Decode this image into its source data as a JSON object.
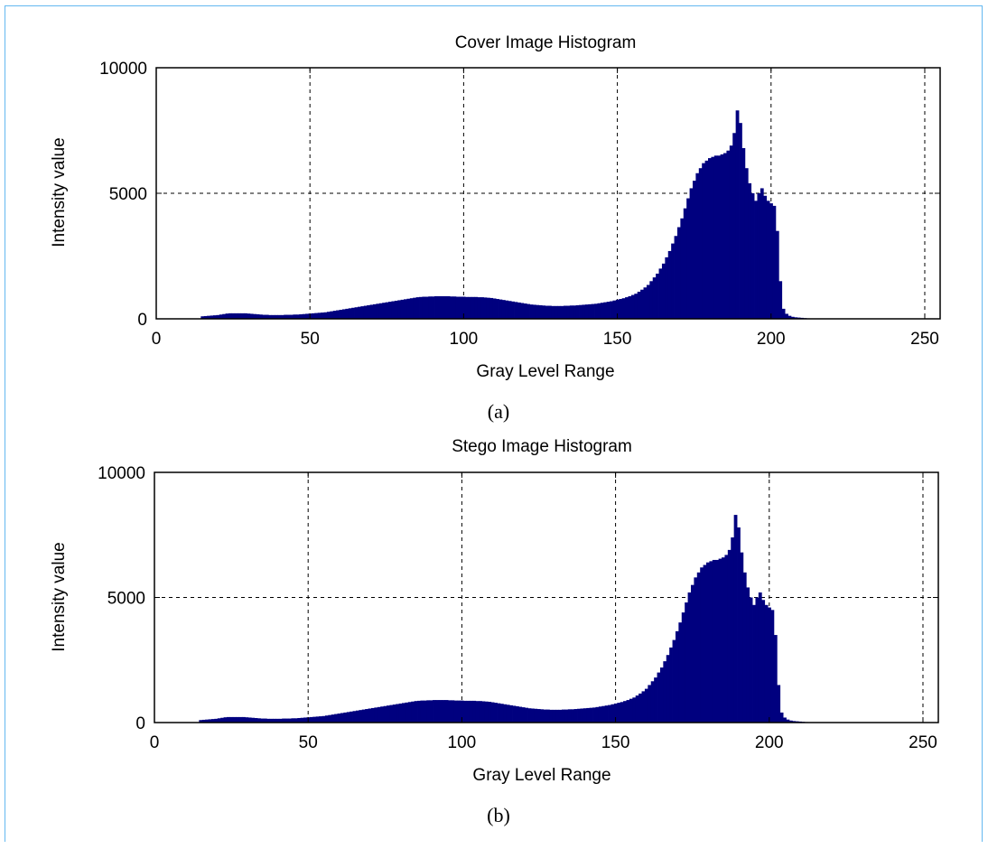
{
  "chart_data": [
    {
      "type": "bar",
      "title": "Cover Image Histogram",
      "xlabel": "Gray Level Range",
      "ylabel": "Intensity value",
      "caption": "(a)",
      "xlim": [
        0,
        255
      ],
      "ylim": [
        0,
        10000
      ],
      "xticks": [
        0,
        50,
        100,
        150,
        200,
        250
      ],
      "yticks": [
        0,
        5000,
        10000
      ],
      "grid": true,
      "bar_color": "#00007f",
      "x_start": 15,
      "values": [
        100,
        110,
        120,
        130,
        140,
        150,
        170,
        190,
        210,
        220,
        220,
        220,
        220,
        220,
        220,
        210,
        200,
        190,
        180,
        170,
        160,
        160,
        150,
        150,
        150,
        150,
        150,
        160,
        160,
        160,
        170,
        170,
        180,
        190,
        200,
        210,
        220,
        230,
        240,
        250,
        260,
        280,
        300,
        320,
        340,
        360,
        380,
        400,
        420,
        440,
        460,
        480,
        500,
        520,
        540,
        560,
        580,
        600,
        620,
        640,
        660,
        680,
        700,
        720,
        740,
        760,
        780,
        800,
        820,
        840,
        860,
        870,
        880,
        880,
        890,
        890,
        900,
        900,
        900,
        900,
        900,
        890,
        890,
        880,
        880,
        880,
        870,
        870,
        870,
        870,
        860,
        860,
        850,
        840,
        830,
        810,
        790,
        770,
        750,
        730,
        710,
        690,
        670,
        650,
        630,
        610,
        590,
        570,
        560,
        550,
        540,
        530,
        520,
        520,
        510,
        510,
        510,
        510,
        520,
        520,
        530,
        530,
        540,
        550,
        560,
        570,
        580,
        590,
        600,
        620,
        640,
        660,
        680,
        700,
        730,
        760,
        790,
        820,
        860,
        900,
        950,
        1000,
        1080,
        1160,
        1250,
        1350,
        1500,
        1650,
        1800,
        2000,
        2200,
        2450,
        2700,
        3000,
        3300,
        3650,
        4000,
        4400,
        4800,
        5200,
        5500,
        5800,
        6000,
        6200,
        6300,
        6400,
        6450,
        6500,
        6500,
        6550,
        6600,
        6700,
        6900,
        7400,
        8300,
        7800,
        6800,
        6000,
        5400,
        5000,
        4700,
        5000,
        5200,
        4900,
        4700,
        4600,
        4500,
        3500,
        1500,
        400,
        200,
        120,
        80,
        60,
        50,
        40,
        30,
        20,
        15
      ],
      "x_end": 232
    },
    {
      "type": "bar",
      "title": "Stego Image Histogram",
      "xlabel": "Gray Level Range",
      "ylabel": "Intensity value",
      "caption": "(b)",
      "xlim": [
        0,
        255
      ],
      "ylim": [
        0,
        10000
      ],
      "xticks": [
        0,
        50,
        100,
        150,
        200,
        250
      ],
      "yticks": [
        0,
        5000,
        10000
      ],
      "grid": true,
      "bar_color": "#00007f",
      "x_start": 15,
      "values": [
        100,
        110,
        120,
        130,
        140,
        150,
        170,
        190,
        210,
        220,
        220,
        220,
        220,
        220,
        220,
        210,
        200,
        190,
        180,
        170,
        160,
        160,
        150,
        150,
        150,
        150,
        150,
        160,
        160,
        160,
        170,
        170,
        180,
        190,
        200,
        210,
        220,
        230,
        240,
        250,
        260,
        280,
        300,
        320,
        340,
        360,
        380,
        400,
        420,
        440,
        460,
        480,
        500,
        520,
        540,
        560,
        580,
        600,
        620,
        640,
        660,
        680,
        700,
        720,
        740,
        760,
        780,
        800,
        820,
        840,
        860,
        870,
        880,
        880,
        890,
        890,
        900,
        900,
        900,
        900,
        900,
        890,
        890,
        880,
        880,
        880,
        870,
        870,
        870,
        870,
        860,
        860,
        850,
        840,
        830,
        810,
        790,
        770,
        750,
        730,
        710,
        690,
        670,
        650,
        630,
        610,
        590,
        570,
        560,
        550,
        540,
        530,
        520,
        520,
        510,
        510,
        510,
        510,
        520,
        520,
        530,
        530,
        540,
        550,
        560,
        570,
        580,
        590,
        600,
        620,
        640,
        660,
        680,
        700,
        730,
        760,
        790,
        820,
        860,
        900,
        950,
        1000,
        1080,
        1160,
        1250,
        1350,
        1500,
        1650,
        1800,
        2000,
        2200,
        2450,
        2700,
        3000,
        3300,
        3650,
        4000,
        4400,
        4800,
        5200,
        5500,
        5800,
        6000,
        6200,
        6300,
        6400,
        6450,
        6500,
        6500,
        6550,
        6600,
        6700,
        6900,
        7400,
        8300,
        7800,
        6800,
        6000,
        5400,
        5000,
        4700,
        5000,
        5200,
        4900,
        4700,
        4600,
        4500,
        3500,
        1500,
        400,
        200,
        120,
        80,
        60,
        50,
        40,
        30,
        20,
        15
      ],
      "x_end": 232
    }
  ]
}
